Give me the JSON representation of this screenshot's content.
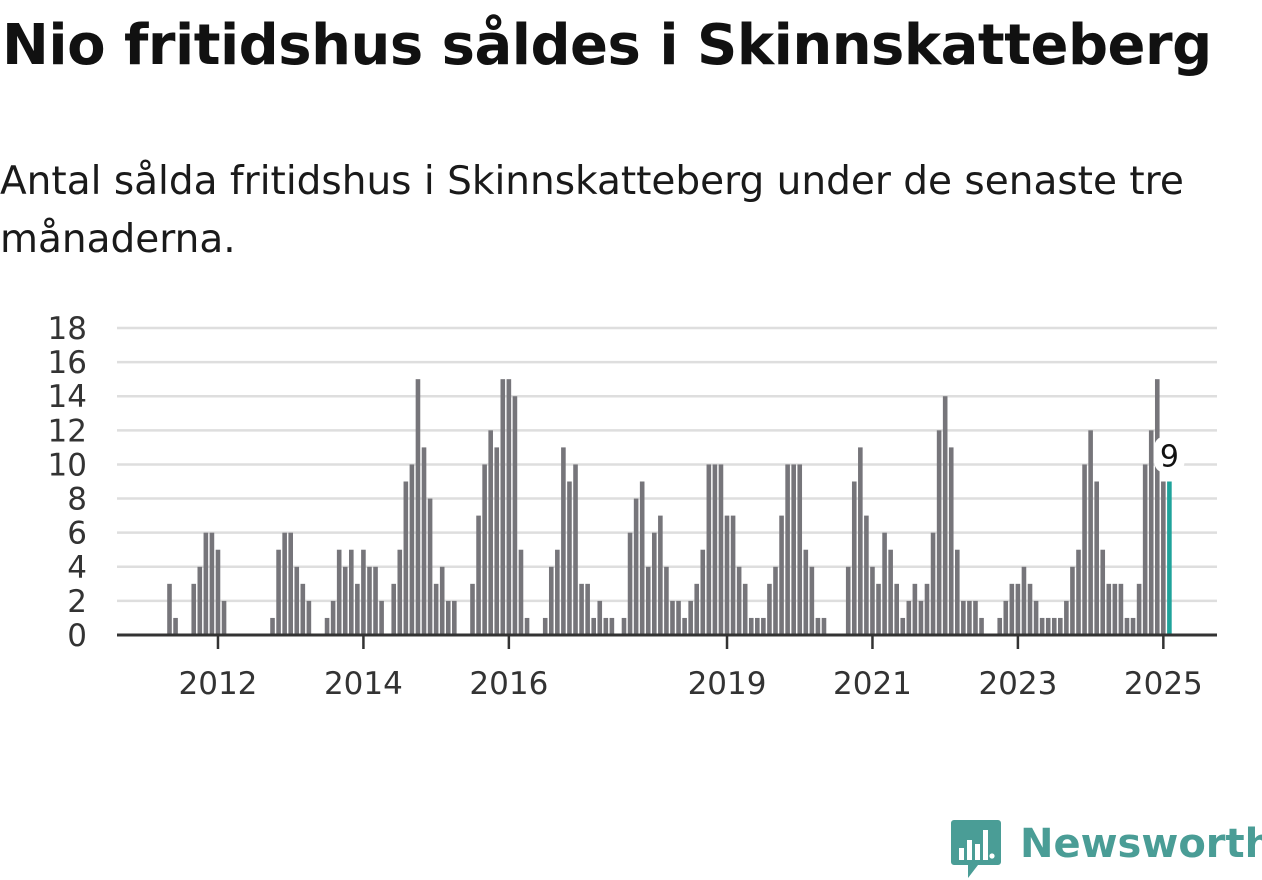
{
  "title": "Nio fritidshus såldes i Skinnskatteberg",
  "subtitle": "Antal sålda fritidshus i Skinnskatteberg under de senaste tre månaderna.",
  "brand": {
    "name": "Newsworthy",
    "color": "#4a9d96"
  },
  "chart_data": {
    "type": "bar",
    "xlabel": "",
    "ylabel": "",
    "ylim": [
      0,
      18
    ],
    "yticks": [
      0,
      2,
      4,
      6,
      8,
      10,
      12,
      14,
      16,
      18
    ],
    "grid": true,
    "colors": {
      "bar": "#76757a",
      "highlight": "#1fa39b",
      "grid": "#dedede",
      "axis": "#333333"
    },
    "x_tick_labels": [
      "2012",
      "2014",
      "2016",
      "2019",
      "2021",
      "2023",
      "2025"
    ],
    "x_tick_indices": [
      8,
      32,
      56,
      92,
      116,
      140,
      164
    ],
    "values": [
      3,
      1,
      0,
      0,
      3,
      4,
      6,
      6,
      5,
      2,
      0,
      0,
      0,
      0,
      0,
      0,
      0,
      1,
      5,
      6,
      6,
      4,
      3,
      2,
      0,
      0,
      1,
      2,
      5,
      4,
      5,
      3,
      5,
      4,
      4,
      2,
      0,
      3,
      5,
      9,
      10,
      15,
      11,
      8,
      3,
      4,
      2,
      2,
      0,
      0,
      3,
      7,
      10,
      12,
      11,
      15,
      15,
      14,
      5,
      1,
      0,
      0,
      1,
      4,
      5,
      11,
      9,
      10,
      3,
      3,
      1,
      2,
      1,
      1,
      0,
      1,
      6,
      8,
      9,
      4,
      6,
      7,
      4,
      2,
      2,
      1,
      2,
      3,
      5,
      10,
      10,
      10,
      7,
      7,
      4,
      3,
      1,
      1,
      1,
      3,
      4,
      7,
      10,
      10,
      10,
      5,
      4,
      1,
      1,
      0,
      0,
      0,
      4,
      9,
      11,
      7,
      4,
      3,
      6,
      5,
      3,
      1,
      2,
      3,
      2,
      3,
      6,
      12,
      14,
      11,
      5,
      2,
      2,
      2,
      1,
      0,
      0,
      1,
      2,
      3,
      3,
      4,
      3,
      2,
      1,
      1,
      1,
      1,
      2,
      4,
      5,
      10,
      12,
      9,
      5,
      3,
      3,
      3,
      1,
      1,
      3,
      10,
      12,
      15,
      9,
      9
    ],
    "highlight_index": 165,
    "highlight_label": "9"
  }
}
